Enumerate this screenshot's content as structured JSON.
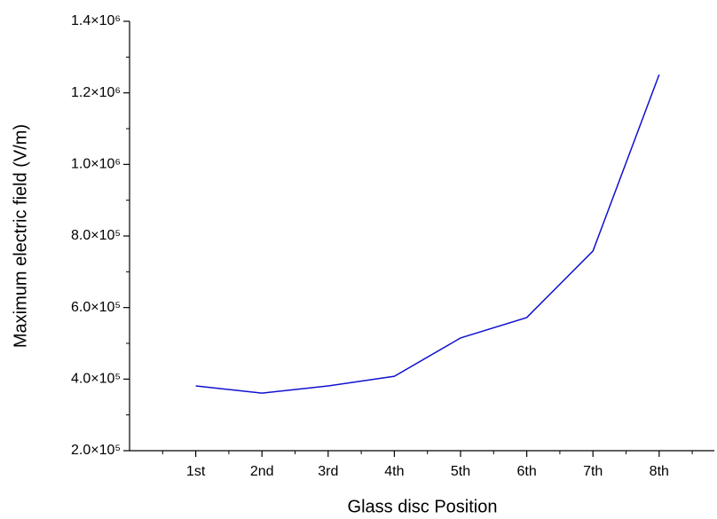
{
  "chart_data": {
    "type": "line",
    "xlabel": "Glass disc Position",
    "ylabel": "Maximum electric field (V/m)",
    "categories": [
      "1st",
      "2nd",
      "3rd",
      "4th",
      "5th",
      "6th",
      "7th",
      "8th"
    ],
    "series": [
      {
        "name": "Maximum electric field",
        "color": "#1010d0",
        "values": [
          381000,
          361000,
          381000,
          408000,
          515000,
          572000,
          758000,
          1251000
        ]
      }
    ],
    "ylim": [
      200000,
      1400000
    ],
    "yticks": [
      {
        "value": 200000,
        "label": "2.0×10⁵"
      },
      {
        "value": 400000,
        "label": "4.0×10⁵"
      },
      {
        "value": 600000,
        "label": "6.0×10⁵"
      },
      {
        "value": 800000,
        "label": "8.0×10⁵"
      },
      {
        "value": 1000000,
        "label": "1.0×10⁶"
      },
      {
        "value": 1200000,
        "label": "1.2×10⁶"
      },
      {
        "value": 1400000,
        "label": "1.4×10⁶"
      }
    ],
    "grid": false
  }
}
